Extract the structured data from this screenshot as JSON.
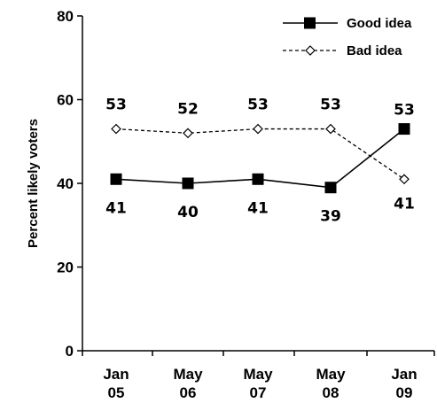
{
  "chart_data": {
    "type": "line",
    "title": "",
    "xlabel": "",
    "ylabel": "Percent likely voters",
    "ylim": [
      0,
      80
    ],
    "yticks": [
      "0",
      "20",
      "40",
      "60",
      "80"
    ],
    "categories": [
      [
        "Jan",
        "05"
      ],
      [
        "May",
        "06"
      ],
      [
        "May",
        "07"
      ],
      [
        "May",
        "08"
      ],
      [
        "Jan",
        "09"
      ]
    ],
    "series": [
      {
        "name": "Good idea",
        "values": [
          41,
          40,
          41,
          39,
          53
        ],
        "labels": [
          "41",
          "40",
          "41",
          "39",
          "53"
        ],
        "color": "#000000",
        "line": "solid",
        "marker": "filled-square"
      },
      {
        "name": "Bad idea",
        "values": [
          53,
          52,
          53,
          53,
          41
        ],
        "labels": [
          "53",
          "52",
          "53",
          "53",
          "41"
        ],
        "color": "#000000",
        "line": "dashed",
        "marker": "open-diamond"
      }
    ],
    "legend": "top-right",
    "grid": false
  }
}
